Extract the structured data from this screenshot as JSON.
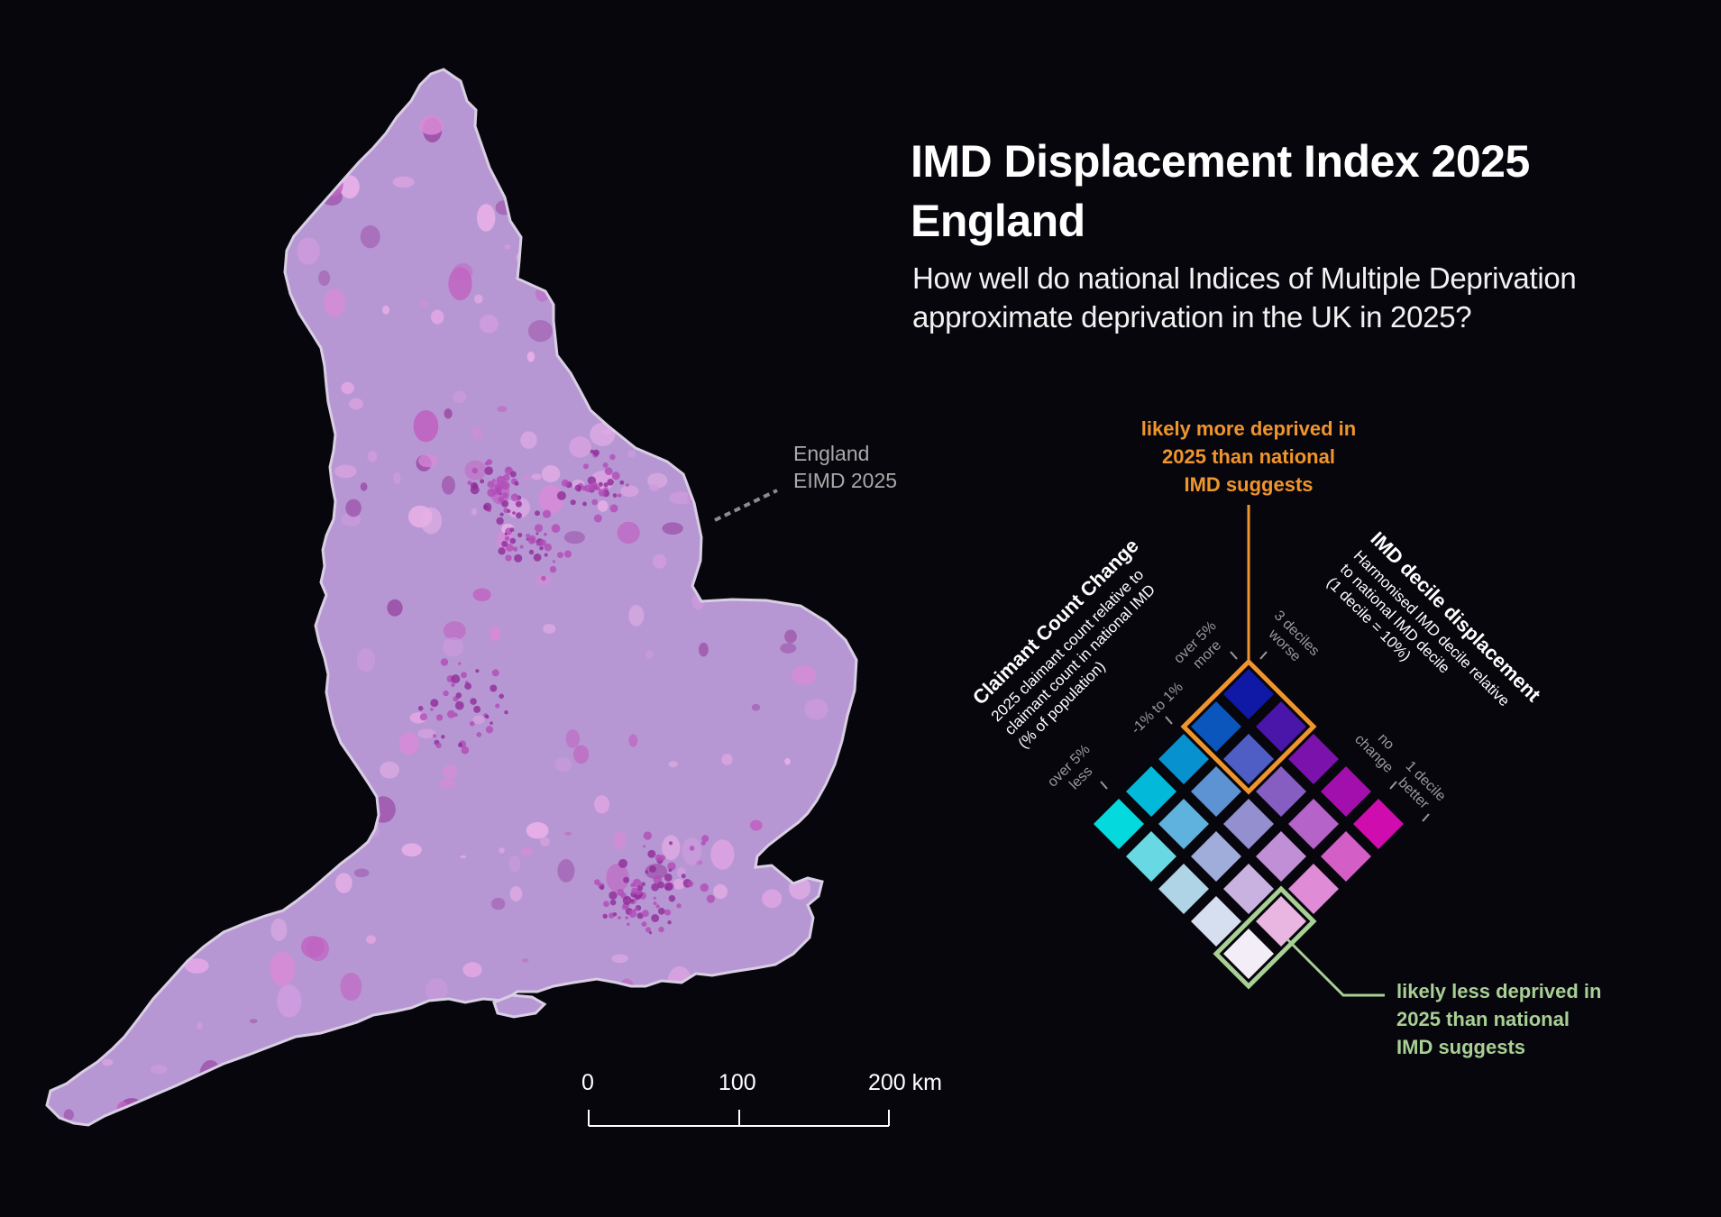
{
  "title": {
    "line1": "IMD Displacement Index 2025",
    "line2": "England"
  },
  "subtitle": {
    "line1": "How well do national Indices of Multiple Deprivation",
    "line2": "approximate deprivation in the UK in 2025?"
  },
  "map_label": {
    "line1": "England",
    "line2": "EIMD 2025"
  },
  "scale_bar": {
    "labels": [
      "0",
      "100",
      "200 km"
    ]
  },
  "colors": {
    "background": "#07060d",
    "land": "#b797d3",
    "coast": "#d9cfe4",
    "more_deprived_highlight": "#f0952c",
    "less_deprived_highlight": "#a8cf94"
  },
  "legend": {
    "axis_claimant": {
      "title": "Claimant Count Change",
      "desc": [
        "2025 claimant count relative to",
        "claimant count in national IMD",
        "(% of population)"
      ],
      "ticks": [
        {
          "lines": [
            "over 5%",
            "more"
          ]
        },
        {
          "lines": [
            "-1% to 1%"
          ]
        },
        {
          "lines": [
            "over 5%",
            "less"
          ]
        }
      ]
    },
    "axis_decile": {
      "title": "IMD decile displacement",
      "desc": [
        "Harmonised IMD decile relative",
        "to national IMD decile",
        "(1 decile = 10%)"
      ],
      "ticks": [
        {
          "lines": [
            "3 deciles",
            "worse"
          ]
        },
        {
          "lines": [
            "no",
            "change"
          ]
        },
        {
          "lines": [
            "1 decile",
            "better"
          ]
        }
      ]
    },
    "grid_colors": [
      [
        "#1019a6",
        "#4a15a9",
        "#7b12ab",
        "#a30fac",
        "#cf0cad"
      ],
      [
        "#0b56bc",
        "#4f5ec4",
        "#865ec2",
        "#b663c9",
        "#d35ec5"
      ],
      [
        "#0891cf",
        "#5e93d3",
        "#948fcf",
        "#c08fd5",
        "#df8bd6"
      ],
      [
        "#02b9d9",
        "#5eb2dd",
        "#a0acd9",
        "#c9b2df",
        "#e9b5e1"
      ],
      [
        "#04dadd",
        "#68d9e2",
        "#aed4e5",
        "#d5dff0",
        "#f3edf7"
      ]
    ],
    "callout_more": {
      "lines": [
        "likely more deprived in",
        "2025 than national",
        "IMD suggests"
      ]
    },
    "callout_less": {
      "lines": [
        "likely less deprived in",
        "2025 than national",
        "IMD suggests"
      ]
    }
  }
}
